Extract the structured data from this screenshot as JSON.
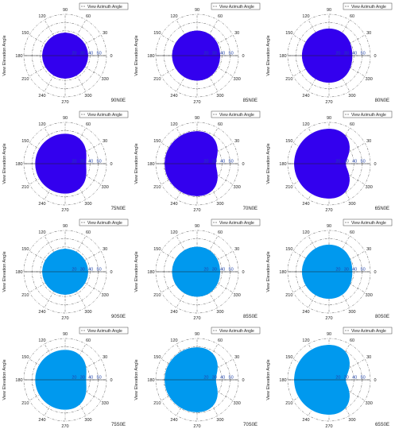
{
  "common": {
    "legend_label": "View Azimuth Angle",
    "ylabel": "View Elevation Angle",
    "angle_labels": [
      "90",
      "60",
      "30",
      "0",
      "330",
      "300",
      "270",
      "240",
      "210",
      "180",
      "150",
      "120"
    ],
    "radial_ticks": [
      "20",
      "30",
      "40",
      "50"
    ],
    "colors": {
      "north": "#3300ee",
      "south": "#0099ee",
      "grid": "#555555"
    }
  },
  "chart_data": [
    {
      "type": "polar-area",
      "label": "90N0E",
      "group": "north",
      "shape": [
        0.55,
        0.0
      ]
    },
    {
      "type": "polar-area",
      "label": "85N0E",
      "group": "north",
      "shape": [
        0.6,
        0.08
      ]
    },
    {
      "type": "polar-area",
      "label": "80N0E",
      "group": "north",
      "shape": [
        0.65,
        0.14
      ]
    },
    {
      "type": "polar-area",
      "label": "75N0E",
      "group": "north",
      "shape": [
        0.72,
        0.3
      ]
    },
    {
      "type": "polar-area",
      "label": "70N0E",
      "group": "north",
      "shape": [
        0.78,
        0.42
      ]
    },
    {
      "type": "polar-area",
      "label": "65N0E",
      "group": "north",
      "shape": [
        0.84,
        0.52
      ]
    },
    {
      "type": "polar-area",
      "label": "90S0E",
      "group": "south",
      "shape": [
        0.55,
        0.0
      ]
    },
    {
      "type": "polar-area",
      "label": "85S0E",
      "group": "south",
      "shape": [
        0.6,
        0.08
      ]
    },
    {
      "type": "polar-area",
      "label": "80S0E",
      "group": "south",
      "shape": [
        0.65,
        0.14
      ]
    },
    {
      "type": "polar-area",
      "label": "75S0E",
      "group": "south",
      "shape": [
        0.72,
        0.3
      ]
    },
    {
      "type": "polar-area",
      "label": "70S0E",
      "group": "south",
      "shape": [
        0.78,
        0.42
      ]
    },
    {
      "type": "polar-area",
      "label": "65S0E",
      "group": "south",
      "shape": [
        0.84,
        0.52
      ]
    }
  ]
}
